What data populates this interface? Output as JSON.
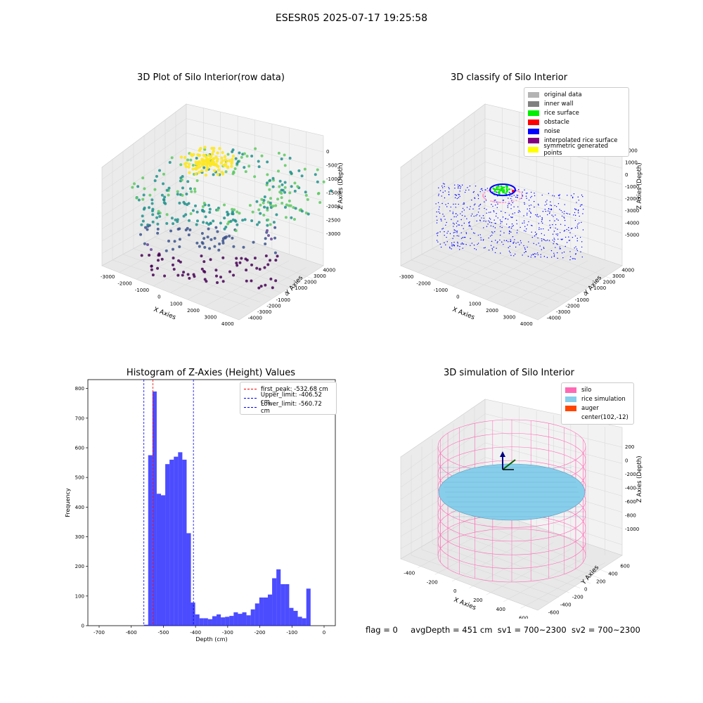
{
  "figure": {
    "title": "ESESR05 2025-07-17 19:25:58"
  },
  "panels": {
    "top_left": {
      "title": "3D Plot of Silo Interior(row data)",
      "xlabel": "X Axies",
      "ylabel": "Y Axies",
      "zlabel": "Z Axies (Depth)",
      "xticks": [
        "-3000",
        "-2000",
        "-1000",
        "0",
        "1000",
        "2000",
        "3000",
        "4000"
      ],
      "yticks": [
        "-4000",
        "-3000",
        "-2000",
        "-1000",
        "0",
        "1000",
        "2000",
        "3000",
        "4000"
      ],
      "zticks": [
        "0",
        "-500",
        "-1000",
        "-1500",
        "-2000",
        "-2500",
        "-3000"
      ]
    },
    "top_right": {
      "title": "3D classify of Silo Interior",
      "xlabel": "X Axies",
      "ylabel": "Y Axies",
      "zlabel": "Z Axies (Depth)",
      "xticks": [
        "-3000",
        "-2000",
        "-1000",
        "0",
        "1000",
        "2000",
        "3000",
        "4000"
      ],
      "yticks": [
        "-4000",
        "-3000",
        "-2000",
        "-1000",
        "0",
        "1000",
        "2000",
        "3000",
        "4000"
      ],
      "zticks": [
        "2000",
        "1000",
        "0",
        "-1000",
        "-2000",
        "-3000",
        "-4000",
        "-5000"
      ],
      "legend": [
        {
          "label": "original data",
          "color": "#b3b3b3"
        },
        {
          "label": "inner wall",
          "color": "#808080"
        },
        {
          "label": "rice surface",
          "color": "#00ee00"
        },
        {
          "label": "obstacle",
          "color": "#ff0000"
        },
        {
          "label": "noise",
          "color": "#0000ff"
        },
        {
          "label": "interpolated rice surface",
          "color": "#800080"
        },
        {
          "label": "symmetric generated points",
          "color": "#ffff00"
        }
      ]
    },
    "bottom_left": {
      "title": "Histogram of Z-Axies (Height) Values",
      "legend": [
        {
          "label": "first_peak: -532.68 cm",
          "color": "#ff0000"
        },
        {
          "label": "Upper_limit: -406.52 cm",
          "color": "#0000ff"
        },
        {
          "label": "Lower_limit: -560.72 cm",
          "color": "#0000ff"
        }
      ]
    },
    "bottom_right": {
      "title": "3D simulation of Silo Interior",
      "xlabel": "X Axies",
      "ylabel": "Y Axies",
      "zlabel": "Z Axies (Depth)",
      "xticks": [
        "-400",
        "-200",
        "0",
        "200",
        "400",
        "600"
      ],
      "yticks": [
        "-600",
        "-400",
        "-200",
        "0",
        "200",
        "400",
        "600"
      ],
      "zticks": [
        "200",
        "0",
        "-200",
        "-400",
        "-600",
        "-800",
        "-1000"
      ],
      "legend": [
        {
          "label": "silo",
          "color": "#ff69b4"
        },
        {
          "label": "rice simulation",
          "color": "#87ceeb"
        },
        {
          "label": "auger",
          "color": "#ff4500"
        },
        {
          "label": "center(102,-12)",
          "color": ""
        }
      ]
    }
  },
  "status": {
    "flag": "flag = 0",
    "avg_depth": "avgDepth = 451 cm",
    "sv1": "sv1 = 700~2300",
    "sv2": "sv2 = 700~2300"
  },
  "chart_data": {
    "type": "bar",
    "title": "Histogram of Z-Axies (Height) Values",
    "xlabel": "Depth (cm)",
    "ylabel": "Frequency",
    "xlim": [
      -735,
      35
    ],
    "ylim": [
      0,
      830
    ],
    "xticks": [
      -700,
      -600,
      -500,
      -400,
      -300,
      -200,
      -100,
      0
    ],
    "yticks": [
      0,
      100,
      200,
      300,
      400,
      500,
      600,
      700,
      800
    ],
    "bar_color": "#0000ff",
    "bar_alpha": 0.7,
    "bin_width": 13.3,
    "bin_starts": [
      -560.7,
      -547.4,
      -534.1,
      -520.8,
      -507.5,
      -494.2,
      -480.9,
      -467.6,
      -454.3,
      -441.0,
      -427.7,
      -414.4,
      -401.1,
      -387.8,
      -374.5,
      -361.2,
      -347.9,
      -334.6,
      -321.3,
      -308.0,
      -294.7,
      -281.4,
      -268.1,
      -254.8,
      -241.5,
      -228.2,
      -214.9,
      -201.6,
      -188.3,
      -175.0,
      -161.7,
      -148.4,
      -135.1,
      -121.8,
      -108.5,
      -95.2,
      -81.9,
      -68.6,
      -55.3,
      -42.0,
      -28.7,
      -15.4
    ],
    "counts": [
      3,
      575,
      790,
      445,
      440,
      545,
      560,
      570,
      585,
      560,
      312,
      78,
      38,
      25,
      25,
      22,
      32,
      38,
      28,
      30,
      33,
      45,
      40,
      45,
      35,
      55,
      75,
      95,
      95,
      105,
      160,
      190,
      140,
      140,
      60,
      50,
      30,
      25,
      125,
      0,
      0,
      0
    ],
    "vlines": [
      {
        "label": "first_peak: -532.68 cm",
        "x": -532.68,
        "color": "#ff0000"
      },
      {
        "label": "Upper_limit: -406.52 cm",
        "x": -406.52,
        "color": "#0000ff"
      },
      {
        "label": "Lower_limit: -560.72 cm",
        "x": -560.72,
        "color": "#0000ff"
      }
    ],
    "legend_position": "top-right",
    "grid": false
  }
}
